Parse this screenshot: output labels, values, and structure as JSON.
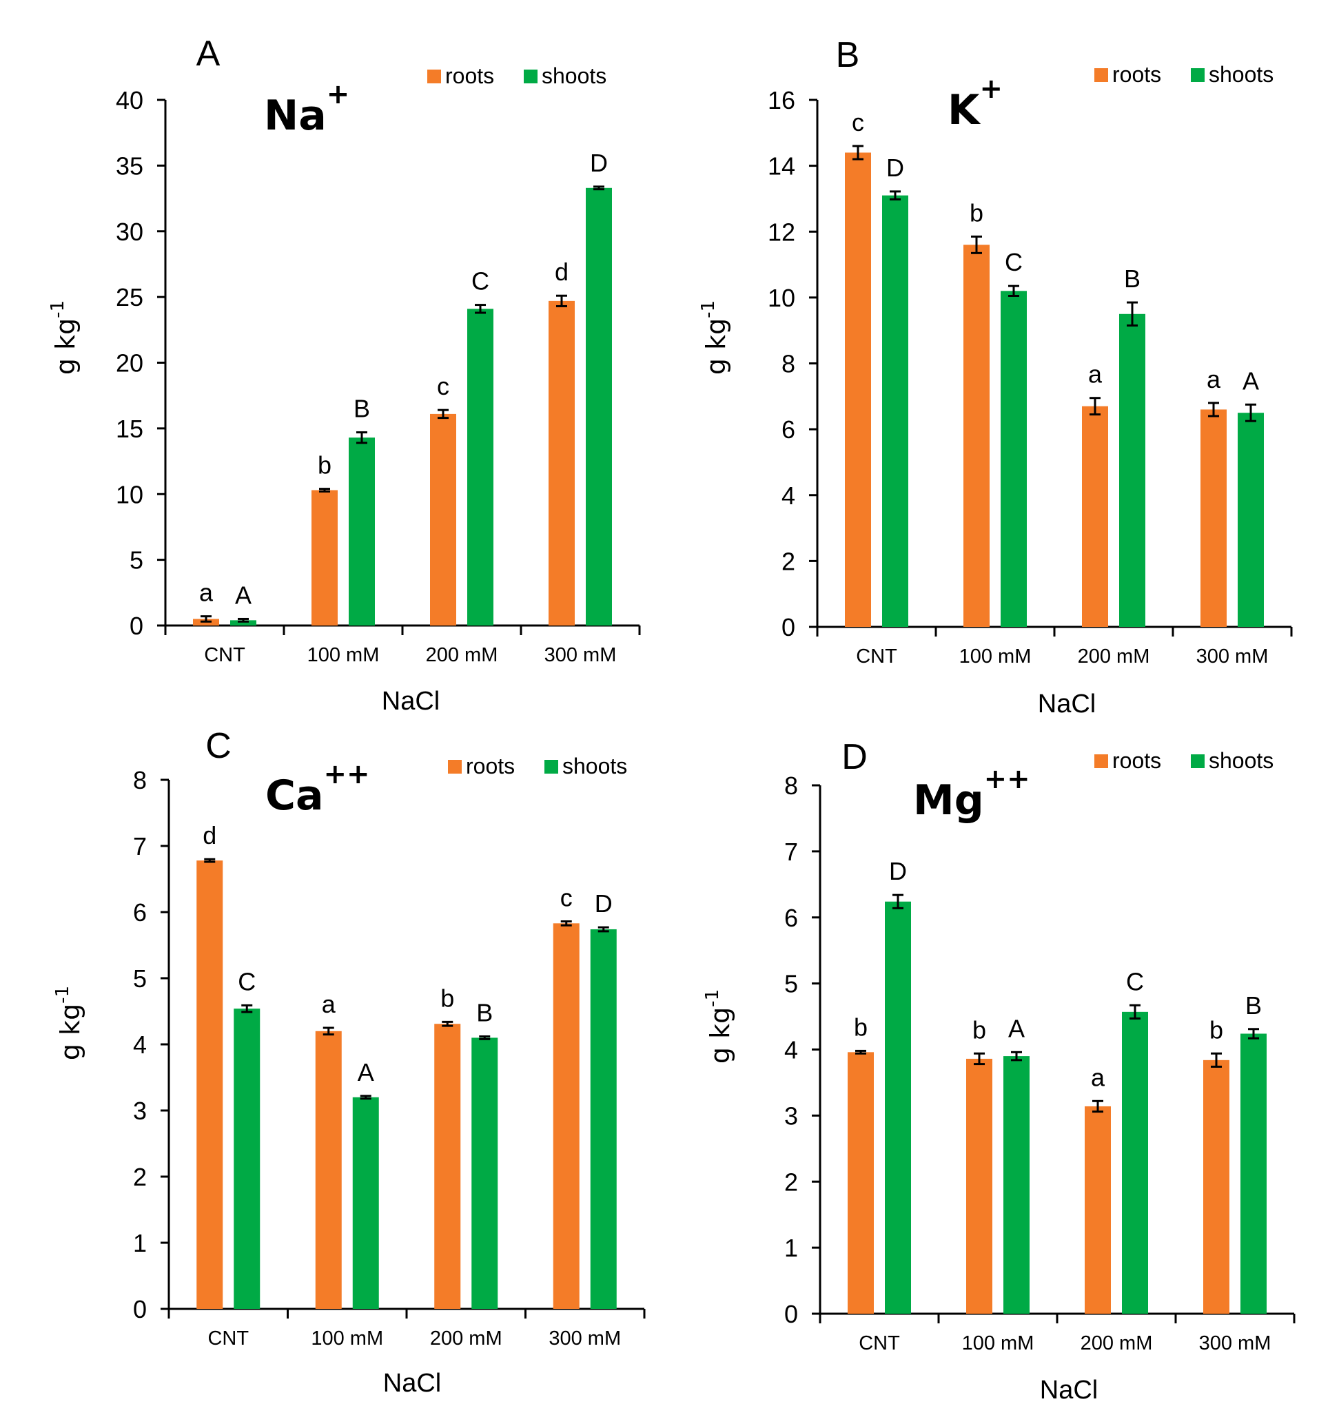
{
  "figure": {
    "legend_labels": [
      "roots",
      "shoots"
    ],
    "colors": {
      "roots": "#F47C28",
      "shoots": "#00AA45",
      "axis": "#000000"
    }
  },
  "chart_data": [
    {
      "panel": "A",
      "type": "bar",
      "title_base": "Na",
      "title_sup": "+",
      "categories": [
        "CNT",
        "100 mM",
        "200 mM",
        "300 mM"
      ],
      "xlabel": "NaCl",
      "ylabel": "g kg",
      "ylabel_sup": "-1",
      "ylim": [
        0,
        40
      ],
      "yticks": [
        0,
        5,
        10,
        15,
        20,
        25,
        30,
        35,
        40
      ],
      "legend_position": "top-right",
      "series": [
        {
          "name": "roots",
          "values": [
            0.5,
            10.3,
            16.1,
            24.7
          ],
          "errors": [
            0.2,
            0.1,
            0.3,
            0.4
          ],
          "letters": [
            "a",
            "b",
            "c",
            "d"
          ]
        },
        {
          "name": "shoots",
          "values": [
            0.4,
            14.3,
            24.1,
            33.3
          ],
          "errors": [
            0.1,
            0.4,
            0.3,
            0.1
          ],
          "letters": [
            "A",
            "B",
            "C",
            "D"
          ]
        }
      ]
    },
    {
      "panel": "B",
      "type": "bar",
      "title_base": "K",
      "title_sup": "+",
      "categories": [
        "CNT",
        "100 mM",
        "200 mM",
        "300 mM"
      ],
      "xlabel": "NaCl",
      "ylabel": "g kg",
      "ylabel_sup": "-1",
      "ylim": [
        0,
        16
      ],
      "yticks": [
        0,
        2,
        4,
        6,
        8,
        10,
        12,
        14,
        16
      ],
      "legend_position": "top-right",
      "series": [
        {
          "name": "roots",
          "values": [
            14.4,
            11.6,
            6.7,
            6.6
          ],
          "errors": [
            0.2,
            0.25,
            0.25,
            0.2
          ],
          "letters": [
            "c",
            "b",
            "a",
            "a"
          ]
        },
        {
          "name": "shoots",
          "values": [
            13.1,
            10.2,
            9.5,
            6.5
          ],
          "errors": [
            0.12,
            0.15,
            0.35,
            0.25
          ],
          "letters": [
            "D",
            "C",
            "B",
            "A"
          ]
        }
      ]
    },
    {
      "panel": "C",
      "type": "bar",
      "title_base": "Ca",
      "title_sup": "++",
      "categories": [
        "CNT",
        "100 mM",
        "200 mM",
        "300 mM"
      ],
      "xlabel": "NaCl",
      "ylabel": "g kg",
      "ylabel_sup": "-1",
      "ylim": [
        0,
        8
      ],
      "yticks": [
        0,
        1,
        2,
        3,
        4,
        5,
        6,
        7,
        8
      ],
      "legend_position": "top-right",
      "series": [
        {
          "name": "roots",
          "values": [
            6.78,
            4.2,
            4.31,
            5.83
          ],
          "errors": [
            0.02,
            0.05,
            0.03,
            0.03
          ],
          "letters": [
            "d",
            "a",
            "b",
            "c"
          ]
        },
        {
          "name": "shoots",
          "values": [
            4.54,
            3.2,
            4.1,
            5.74
          ],
          "errors": [
            0.05,
            0.02,
            0.02,
            0.03
          ],
          "letters": [
            "C",
            "A",
            "B",
            "D"
          ]
        }
      ]
    },
    {
      "panel": "D",
      "type": "bar",
      "title_base": "Mg",
      "title_sup": "++",
      "categories": [
        "CNT",
        "100 mM",
        "200 mM",
        "300 mM"
      ],
      "xlabel": "NaCl",
      "ylabel": "g kg",
      "ylabel_sup": "-1",
      "ylim": [
        0,
        8
      ],
      "yticks": [
        0,
        1,
        2,
        3,
        4,
        5,
        6,
        7,
        8
      ],
      "legend_position": "top-right",
      "series": [
        {
          "name": "roots",
          "values": [
            3.96,
            3.86,
            3.14,
            3.84
          ],
          "errors": [
            0.02,
            0.08,
            0.08,
            0.1
          ],
          "letters": [
            "b",
            "b",
            "a",
            "b"
          ]
        },
        {
          "name": "shoots",
          "values": [
            6.24,
            3.9,
            4.57,
            4.24
          ],
          "errors": [
            0.1,
            0.06,
            0.1,
            0.07
          ],
          "letters": [
            "D",
            "A",
            "C",
            "B"
          ]
        }
      ]
    }
  ]
}
